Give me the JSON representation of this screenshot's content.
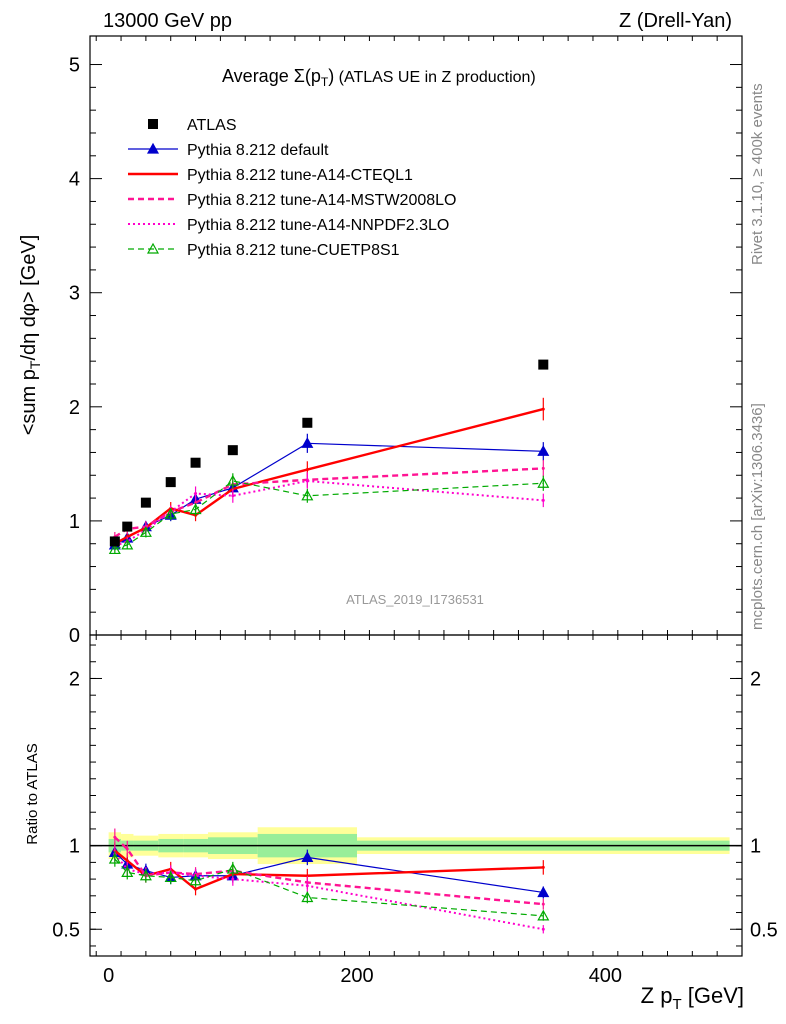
{
  "header": {
    "left": "13000 GeV pp",
    "right": "Z (Drell-Yan)"
  },
  "side_labels": {
    "rivet": "Rivet 3.1.10, ≥ 400k events",
    "mcplots": "mcplots.cern.ch [arXiv:1306.3436]"
  },
  "chart_data": {
    "type": "line",
    "title_prefix": "Average ",
    "title_sigma": "Σ(p",
    "title_sub": "T",
    "title_close": ")",
    "title_suffix": " (ATLAS UE in Z production)",
    "analysis_id": "ATLAS_2019_I1736531",
    "xlabel_main": "Z p",
    "xlabel_sub": "T",
    "xlabel_unit": " [GeV]",
    "ylabel_main": "<sum p",
    "ylabel_sub": "T",
    "ylabel_rest": "/dη dφ> [GeV]",
    "ratio_ylabel": "Ratio to ATLAS",
    "xlim": [
      -15,
      510
    ],
    "ylim": [
      0,
      5.25
    ],
    "ratio_ylim": [
      0.34,
      2.26
    ],
    "x_ticks": [
      0,
      200,
      400
    ],
    "x_tick_labels": [
      "0",
      "200",
      "400"
    ],
    "y_ticks": [
      0,
      1,
      2,
      3,
      4,
      5
    ],
    "y_tick_labels": [
      "0",
      "1",
      "2",
      "3",
      "4",
      "5"
    ],
    "ratio_ticks": [
      0.5,
      1,
      2
    ],
    "ratio_tick_labels": [
      "0.5",
      "1",
      "2"
    ],
    "x": [
      5,
      15,
      30,
      50,
      70,
      100,
      160,
      350
    ],
    "bin_edges": [
      0,
      10,
      20,
      40,
      60,
      80,
      120,
      200,
      500
    ],
    "data": {
      "name": "ATLAS",
      "values": [
        0.82,
        0.95,
        1.16,
        1.34,
        1.51,
        1.62,
        1.86,
        2.37
      ],
      "ratio_band_inner": [
        0.04,
        0.03,
        0.03,
        0.04,
        0.04,
        0.05,
        0.07,
        0.03
      ],
      "ratio_band_outer": [
        0.08,
        0.07,
        0.06,
        0.07,
        0.07,
        0.08,
        0.11,
        0.05
      ]
    },
    "series": [
      {
        "name": "Pythia 8.212 default",
        "color": "#0000cc",
        "style": "solid",
        "width": 1.2,
        "marker": "triangle-filled",
        "values": [
          0.79,
          0.85,
          0.95,
          1.05,
          1.19,
          1.29,
          1.68,
          1.61
        ],
        "ratio": [
          0.96,
          0.89,
          0.85,
          0.81,
          0.82,
          0.82,
          0.93,
          0.72
        ]
      },
      {
        "name": "Pythia 8.212 tune-A14-CTEQL1",
        "color": "#ff0000",
        "style": "solid",
        "width": 2.4,
        "marker": "none",
        "values": [
          0.8,
          0.86,
          0.94,
          1.11,
          1.05,
          1.28,
          1.45,
          1.98
        ],
        "ratio": [
          0.97,
          0.91,
          0.82,
          0.86,
          0.74,
          0.83,
          0.82,
          0.87
        ]
      },
      {
        "name": "Pythia 8.212 tune-A14-MSTW2008LO",
        "color": "#ff1493",
        "style": "dash",
        "width": 2.4,
        "marker": "none",
        "values": [
          0.86,
          0.93,
          0.95,
          1.08,
          1.16,
          1.32,
          1.36,
          1.46
        ],
        "ratio": [
          1.05,
          0.98,
          0.82,
          0.84,
          0.83,
          0.85,
          0.78,
          0.65
        ]
      },
      {
        "name": "Pythia 8.212 tune-A14-NNPDF2.3LO",
        "color": "#ff00cc",
        "style": "dot",
        "width": 2.0,
        "marker": "none",
        "values": [
          0.78,
          0.82,
          0.92,
          1.08,
          1.24,
          1.22,
          1.35,
          1.18
        ],
        "ratio": [
          0.95,
          0.86,
          0.83,
          0.84,
          0.82,
          0.8,
          0.76,
          0.5
        ]
      },
      {
        "name": "Pythia 8.212 tune-CUETP8S1",
        "color": "#00aa00",
        "style": "dash",
        "width": 1.2,
        "marker": "triangle-open",
        "values": [
          0.75,
          0.79,
          0.9,
          1.06,
          1.1,
          1.35,
          1.22,
          1.33
        ],
        "ratio": [
          0.92,
          0.84,
          0.82,
          0.81,
          0.79,
          0.86,
          0.69,
          0.58
        ]
      }
    ]
  }
}
